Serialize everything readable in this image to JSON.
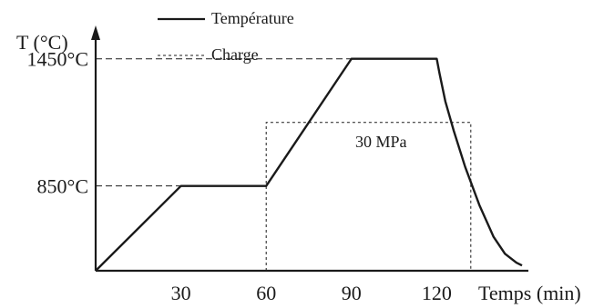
{
  "chart_data": {
    "type": "line",
    "ylabel": "T (°C)",
    "xlabel": "Temps (min)",
    "x_ticks": [
      "30",
      "60",
      "90",
      "120"
    ],
    "y_ticks": [
      "850°C",
      "1450°C"
    ],
    "legend": {
      "placement": "top-center",
      "entries": [
        "Température",
        "Charge"
      ]
    },
    "annotation": "30 MPa",
    "xlim": [
      0,
      150
    ],
    "ylim": [
      450,
      1700
    ],
    "series": [
      {
        "name": "Température",
        "style": "solid",
        "color": "#1a1a1a",
        "points": [
          [
            0,
            450
          ],
          [
            30,
            850
          ],
          [
            60,
            850
          ],
          [
            90,
            1450
          ],
          [
            120,
            1450
          ],
          [
            121,
            1380
          ],
          [
            123,
            1250
          ],
          [
            126,
            1110
          ],
          [
            130,
            940
          ],
          [
            135,
            760
          ],
          [
            140,
            610
          ],
          [
            144,
            530
          ],
          [
            148,
            488
          ],
          [
            150,
            475
          ]
        ]
      },
      {
        "name": "Charge",
        "style": "dashed",
        "color": "#1a1a1a",
        "points": [
          [
            60,
            450
          ],
          [
            60,
            1150
          ],
          [
            132,
            1150
          ],
          [
            132,
            450
          ]
        ]
      }
    ],
    "reference_lines": [
      {
        "axis": "y",
        "value": 1450,
        "x_end": 90
      },
      {
        "axis": "y",
        "value": 850,
        "x_end": 60
      }
    ]
  }
}
